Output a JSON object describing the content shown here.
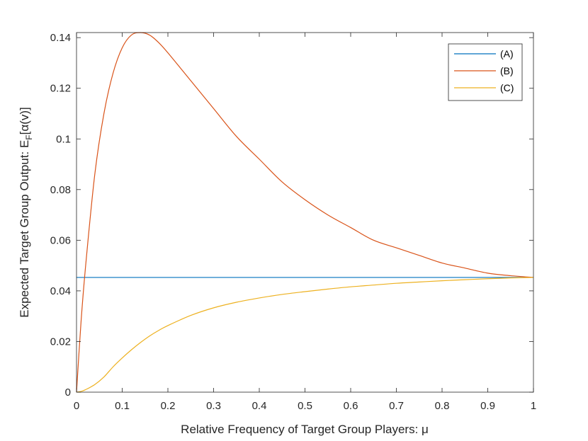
{
  "chart_data": {
    "type": "line",
    "xlabel": "Relative Frequency of Target Group Players: μ",
    "ylabel": {
      "prefix": "Expected Target Group Output: E",
      "subscript": "F",
      "suffix": "[α(v)]"
    },
    "xlim": [
      0,
      1
    ],
    "ylim": [
      0,
      0.142
    ],
    "xticks": [
      0,
      0.1,
      0.2,
      0.3,
      0.4,
      0.5,
      0.6,
      0.7,
      0.8,
      0.9,
      1
    ],
    "xtick_labels": [
      "0",
      "0.1",
      "0.2",
      "0.3",
      "0.4",
      "0.5",
      "0.6",
      "0.7",
      "0.8",
      "0.9",
      "1"
    ],
    "yticks": [
      0,
      0.02,
      0.04,
      0.06,
      0.08,
      0.1,
      0.12,
      0.14
    ],
    "ytick_labels": [
      "0",
      "0.02",
      "0.04",
      "0.06",
      "0.08",
      "0.1",
      "0.12",
      "0.14"
    ],
    "grid": false,
    "legend_position": "top-right",
    "x": [
      0,
      0.01,
      0.02,
      0.04,
      0.06,
      0.08,
      0.1,
      0.12,
      0.14,
      0.16,
      0.18,
      0.2,
      0.25,
      0.3,
      0.35,
      0.4,
      0.45,
      0.5,
      0.55,
      0.6,
      0.65,
      0.7,
      0.75,
      0.8,
      0.85,
      0.9,
      0.95,
      1
    ],
    "series": [
      {
        "name": "(A)",
        "color": "#0072BD",
        "values": [
          0.0453,
          0.0453,
          0.0453,
          0.0453,
          0.0453,
          0.0453,
          0.0453,
          0.0453,
          0.0453,
          0.0453,
          0.0453,
          0.0453,
          0.0453,
          0.0453,
          0.0453,
          0.0453,
          0.0453,
          0.0453,
          0.0453,
          0.0453,
          0.0453,
          0.0453,
          0.0453,
          0.0453,
          0.0453,
          0.0453,
          0.0453,
          0.0453
        ]
      },
      {
        "name": "(B)",
        "color": "#D95319",
        "values": [
          0,
          0.028,
          0.05,
          0.086,
          0.11,
          0.126,
          0.136,
          0.141,
          0.142,
          0.141,
          0.138,
          0.134,
          0.123,
          0.112,
          0.101,
          0.092,
          0.083,
          0.076,
          0.07,
          0.065,
          0.06,
          0.057,
          0.054,
          0.051,
          0.049,
          0.047,
          0.046,
          0.0453
        ]
      },
      {
        "name": "(C)",
        "color": "#EDB120",
        "values": [
          0,
          0.0003,
          0.001,
          0.003,
          0.006,
          0.01,
          0.0135,
          0.0167,
          0.0196,
          0.0222,
          0.0244,
          0.0263,
          0.0303,
          0.0333,
          0.0355,
          0.0372,
          0.0386,
          0.0397,
          0.0407,
          0.0416,
          0.0423,
          0.043,
          0.0435,
          0.044,
          0.0444,
          0.0448,
          0.0451,
          0.0453
        ]
      }
    ]
  }
}
